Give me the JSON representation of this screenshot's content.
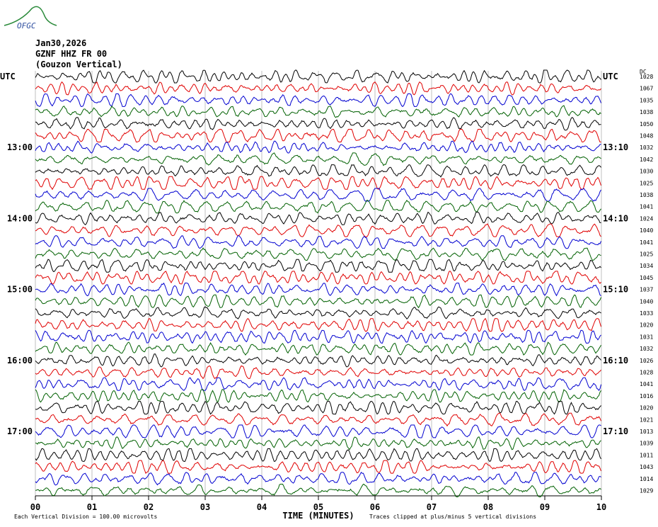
{
  "header": {
    "logo": "OFGC",
    "date": "Jan30,2026",
    "station": "GZNF HHZ FR 00",
    "location": "(Gouzon Vertical)",
    "right_header": "DC"
  },
  "rows": {
    "left_labels": [
      "UTC",
      null,
      null,
      null,
      null,
      null,
      "13:00",
      null,
      null,
      null,
      null,
      null,
      "14:00",
      null,
      null,
      null,
      null,
      null,
      "15:00",
      null,
      null,
      null,
      null,
      null,
      "16:00",
      null,
      null,
      null,
      null,
      null,
      "17:00",
      null,
      null,
      null,
      null,
      null
    ],
    "right_labels": [
      "UTC",
      null,
      null,
      null,
      null,
      null,
      "13:10",
      null,
      null,
      null,
      null,
      null,
      "14:10",
      null,
      null,
      null,
      null,
      null,
      "15:10",
      null,
      null,
      null,
      null,
      null,
      "16:10",
      null,
      null,
      null,
      null,
      null,
      "17:10",
      null,
      null,
      null,
      null,
      null
    ],
    "dc_values": [
      1028,
      1067,
      1035,
      1038,
      1050,
      1048,
      1032,
      1042,
      1030,
      1025,
      1038,
      1041,
      1024,
      1040,
      1041,
      1025,
      1034,
      1045,
      1037,
      1040,
      1033,
      1020,
      1031,
      1032,
      1026,
      1028,
      1041,
      1016,
      1020,
      1021,
      1013,
      1039,
      1011,
      1043,
      1014,
      1029
    ],
    "colors": [
      "#000000",
      "#e00000",
      "#0000d0",
      "#006000"
    ]
  },
  "x_axis": {
    "ticks": [
      "00",
      "01",
      "02",
      "03",
      "04",
      "05",
      "06",
      "07",
      "08",
      "09",
      "10"
    ],
    "label": "TIME (MINUTES)"
  },
  "footer": {
    "left": "Each Vertical Division =  100.00 microvolts",
    "right": "Traces clipped at plus/minus 5 vertical divisions"
  }
}
